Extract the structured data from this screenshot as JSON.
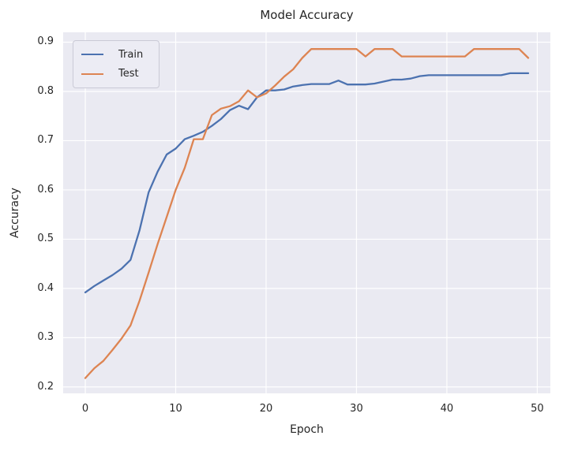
{
  "figure": {
    "background": "#ffffff",
    "plot_background": "#eaeaf2",
    "grid_color": "#ffffff",
    "text_color": "#262626"
  },
  "chart_data": {
    "type": "line",
    "title": "Model Accuracy",
    "xlabel": "Epoch",
    "ylabel": "Accuracy",
    "grid": true,
    "legend_position": "upper left",
    "xlim": [
      -2.45,
      51.45
    ],
    "ylim": [
      0.187,
      0.92
    ],
    "xticks": [
      0,
      10,
      20,
      30,
      40,
      50
    ],
    "yticks": [
      0.2,
      0.3,
      0.4,
      0.5,
      0.6,
      0.7,
      0.8,
      0.9
    ],
    "x": [
      0,
      1,
      2,
      3,
      4,
      5,
      6,
      7,
      8,
      9,
      10,
      11,
      12,
      13,
      14,
      15,
      16,
      17,
      18,
      19,
      20,
      21,
      22,
      23,
      24,
      25,
      26,
      27,
      28,
      29,
      30,
      31,
      32,
      33,
      34,
      35,
      36,
      37,
      38,
      39,
      40,
      41,
      42,
      43,
      44,
      45,
      46,
      47,
      48,
      49
    ],
    "series": [
      {
        "name": "Train",
        "color": "#4c72b0",
        "values": [
          0.392,
          0.405,
          0.416,
          0.427,
          0.44,
          0.458,
          0.518,
          0.595,
          0.637,
          0.672,
          0.684,
          0.703,
          0.71,
          0.718,
          0.73,
          0.744,
          0.762,
          0.771,
          0.764,
          0.788,
          0.802,
          0.802,
          0.804,
          0.81,
          0.813,
          0.815,
          0.815,
          0.815,
          0.822,
          0.814,
          0.814,
          0.814,
          0.816,
          0.82,
          0.824,
          0.824,
          0.826,
          0.831,
          0.833,
          0.833,
          0.833,
          0.833,
          0.833,
          0.833,
          0.833,
          0.833,
          0.833,
          0.837,
          0.837,
          0.837
        ]
      },
      {
        "name": "Test",
        "color": "#dd8452",
        "values": [
          0.218,
          0.238,
          0.253,
          0.275,
          0.298,
          0.325,
          0.375,
          0.432,
          0.49,
          0.545,
          0.6,
          0.645,
          0.703,
          0.703,
          0.752,
          0.765,
          0.77,
          0.78,
          0.802,
          0.788,
          0.796,
          0.812,
          0.83,
          0.845,
          0.868,
          0.886,
          0.886,
          0.886,
          0.886,
          0.886,
          0.886,
          0.871,
          0.886,
          0.886,
          0.886,
          0.871,
          0.871,
          0.871,
          0.871,
          0.871,
          0.871,
          0.871,
          0.871,
          0.886,
          0.886,
          0.886,
          0.886,
          0.886,
          0.886,
          0.868
        ]
      }
    ]
  }
}
